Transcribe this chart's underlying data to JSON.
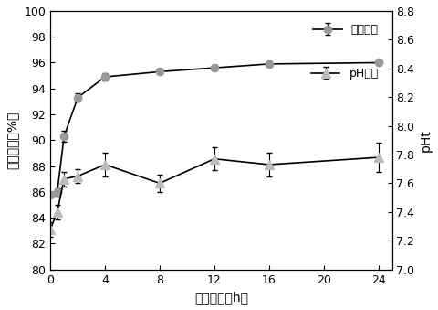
{
  "title": "",
  "xlabel": "反应时间（h）",
  "ylabel_left": "铀去除率（%）",
  "ylabel_right": "pHt",
  "x_uranium": [
    0,
    0.5,
    1,
    2,
    4,
    8,
    12,
    16,
    24
  ],
  "y_uranium": [
    85.8,
    86.0,
    90.3,
    93.3,
    94.9,
    95.3,
    95.6,
    95.9,
    96.0
  ],
  "y_uranium_err": [
    0.2,
    0.3,
    0.4,
    0.3,
    0.3,
    0.2,
    0.2,
    0.2,
    0.2
  ],
  "x_ph": [
    0,
    0.5,
    1,
    2,
    4,
    8,
    12,
    16,
    24
  ],
  "y_ph": [
    7.28,
    7.4,
    7.63,
    7.65,
    7.73,
    7.6,
    7.77,
    7.73,
    7.78
  ],
  "y_ph_err": [
    0.05,
    0.05,
    0.05,
    0.05,
    0.08,
    0.06,
    0.08,
    0.08,
    0.1
  ],
  "ylim_left": [
    80,
    100
  ],
  "ylim_right": [
    7.0,
    8.8
  ],
  "xlim": [
    0,
    25
  ],
  "xticks": [
    0,
    4,
    8,
    12,
    16,
    20,
    24
  ],
  "yticks_left": [
    80,
    82,
    84,
    86,
    88,
    90,
    92,
    94,
    96,
    98,
    100
  ],
  "yticks_right": [
    7.0,
    7.2,
    7.4,
    7.6,
    7.8,
    8.0,
    8.2,
    8.4,
    8.6,
    8.8
  ],
  "line_color": "#000000",
  "marker_color_uranium": "#999999",
  "marker_color_ph": "#bbbbbb",
  "legend_uranium": "铀去除率",
  "legend_ph": "pH变化",
  "figsize": [
    4.81,
    3.39
  ],
  "dpi": 100
}
